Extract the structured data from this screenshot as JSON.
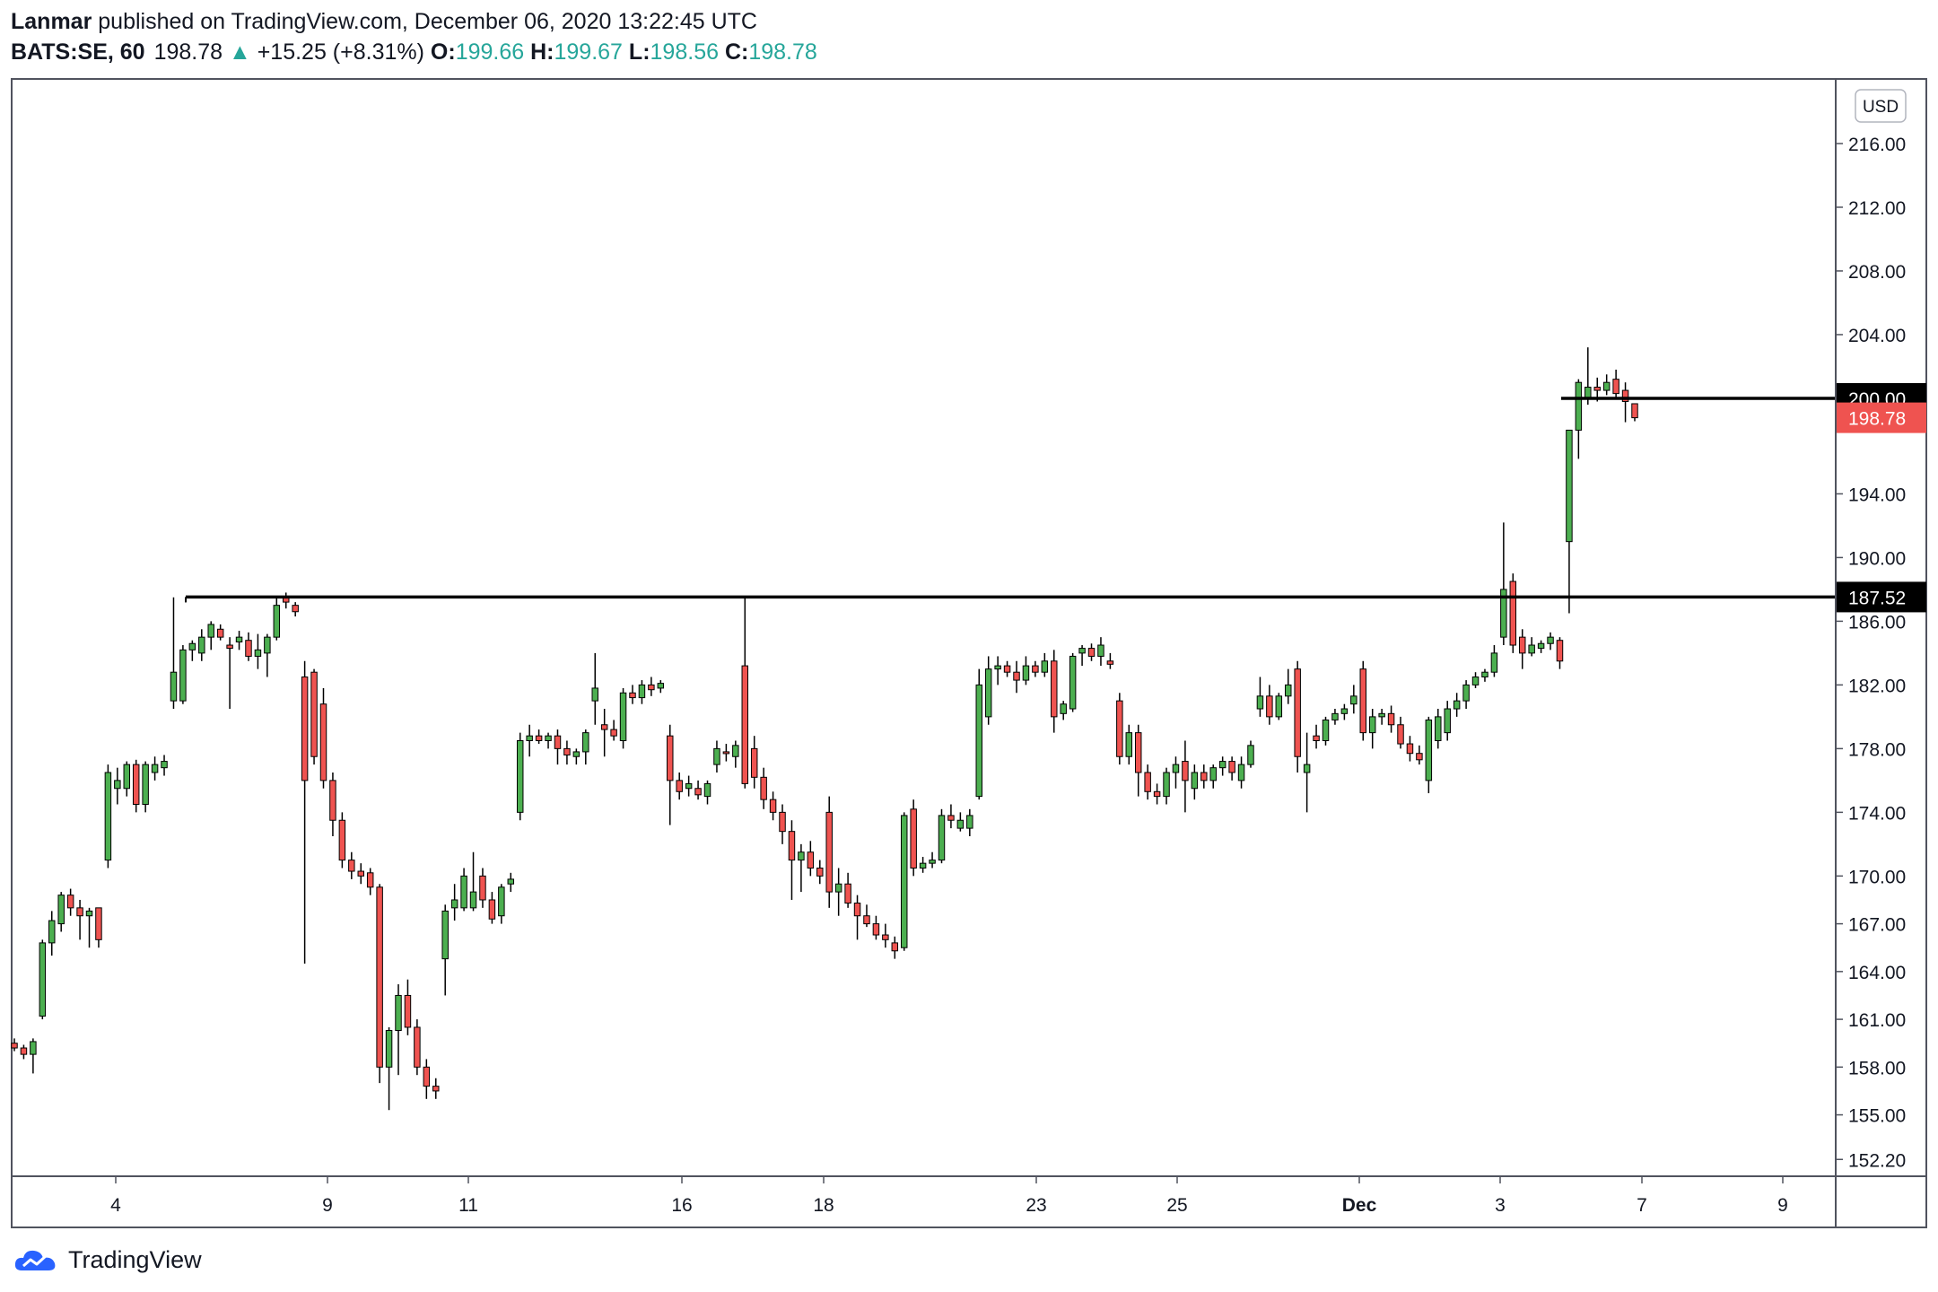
{
  "header": {
    "author": "Lanmar",
    "published_text": "published on TradingView.com, December 06, 2020 13:22:45 UTC",
    "symbol": "BATS:SE, 60",
    "last_price": "198.78",
    "change_arrow": "▲",
    "change": "+15.25 (+8.31%)",
    "open_label": "O:",
    "open": "199.66",
    "high_label": "H:",
    "high": "199.67",
    "low_label": "L:",
    "low": "198.56",
    "close_label": "C:",
    "close": "198.78"
  },
  "currency_badge": "USD",
  "footer": {
    "brand": "TradingView",
    "logo_icon": "tradingview-cloud-icon"
  },
  "colors": {
    "up": "#26a69a",
    "bull_body": "#4caf50",
    "bear_body": "#ef5350",
    "accent_red": "#ef5350",
    "line": "#000000"
  },
  "chart_data": {
    "type": "candlestick",
    "title": "",
    "xlabel": "",
    "ylabel": "",
    "y_ticks": [
      "216.00",
      "212.00",
      "208.00",
      "204.00",
      "194.00",
      "190.00",
      "186.00",
      "182.00",
      "178.00",
      "174.00",
      "170.00",
      "167.00",
      "164.00",
      "161.00",
      "158.00",
      "155.00",
      "152.20"
    ],
    "x_ticks": [
      "4",
      "9",
      "11",
      "16",
      "18",
      "23",
      "25",
      "Dec",
      "3",
      "7",
      "9"
    ],
    "ylim": [
      151.2,
      220
    ],
    "horizontal_lines": [
      {
        "price": 200.0,
        "label": "200.00"
      },
      {
        "price": 187.52,
        "label": "187.52"
      }
    ],
    "last_price_label": "198.78",
    "candles": [
      [
        159.5,
        159.8,
        159.0,
        159.2
      ],
      [
        159.2,
        159.4,
        158.5,
        158.8
      ],
      [
        158.8,
        159.8,
        157.6,
        159.6
      ],
      [
        161.2,
        166.0,
        161.0,
        165.8
      ],
      [
        165.8,
        167.8,
        165.0,
        167.2
      ],
      [
        167.0,
        169.0,
        166.5,
        168.8
      ],
      [
        168.8,
        169.2,
        167.5,
        168.0
      ],
      [
        168.0,
        168.5,
        166.0,
        167.5
      ],
      [
        167.5,
        168.0,
        165.5,
        167.8
      ],
      [
        168.0,
        167.5,
        165.5,
        166.0
      ],
      [
        171.0,
        177.0,
        170.5,
        176.5
      ],
      [
        175.5,
        176.8,
        174.5,
        176.0
      ],
      [
        175.5,
        177.2,
        175.0,
        177.0
      ],
      [
        177.0,
        177.3,
        174.0,
        174.5
      ],
      [
        174.5,
        177.2,
        174.0,
        177.0
      ],
      [
        176.5,
        177.5,
        176.0,
        177.0
      ],
      [
        176.8,
        177.6,
        176.3,
        177.2
      ],
      [
        181.0,
        187.5,
        180.5,
        182.8
      ],
      [
        181.0,
        184.5,
        180.8,
        184.2
      ],
      [
        184.2,
        184.8,
        183.5,
        184.6
      ],
      [
        184.0,
        185.5,
        183.5,
        185.0
      ],
      [
        185.0,
        186.0,
        184.2,
        185.8
      ],
      [
        185.5,
        185.8,
        184.8,
        185.0
      ],
      [
        184.5,
        185.0,
        180.5,
        184.3
      ],
      [
        184.7,
        185.4,
        184.2,
        185.0
      ],
      [
        184.8,
        185.3,
        183.5,
        183.8
      ],
      [
        183.8,
        185.2,
        183.0,
        184.2
      ],
      [
        184.0,
        185.2,
        182.5,
        185.0
      ],
      [
        185.0,
        187.5,
        184.8,
        187.0
      ],
      [
        187.5,
        187.8,
        186.8,
        187.2
      ],
      [
        187.0,
        187.2,
        186.3,
        186.6
      ],
      [
        182.5,
        183.5,
        164.5,
        176.0
      ],
      [
        182.8,
        183.0,
        177.0,
        177.5
      ],
      [
        180.8,
        181.8,
        175.5,
        176.0
      ],
      [
        176.0,
        176.5,
        172.5,
        173.5
      ],
      [
        173.5,
        174.0,
        170.5,
        171.0
      ],
      [
        171.0,
        171.5,
        169.8,
        170.3
      ],
      [
        170.3,
        170.8,
        169.5,
        170.0
      ],
      [
        170.2,
        170.5,
        168.8,
        169.3
      ],
      [
        169.3,
        169.5,
        157.0,
        158.0
      ],
      [
        158.0,
        160.5,
        155.3,
        160.3
      ],
      [
        160.3,
        163.2,
        157.5,
        162.5
      ],
      [
        162.5,
        163.5,
        160.0,
        160.5
      ],
      [
        160.5,
        161.0,
        157.5,
        158.0
      ],
      [
        158.0,
        158.5,
        156.0,
        156.8
      ],
      [
        156.8,
        157.3,
        156.0,
        156.5
      ],
      [
        164.8,
        168.2,
        162.5,
        167.8
      ],
      [
        168.0,
        169.5,
        167.2,
        168.5
      ],
      [
        168.0,
        170.5,
        167.8,
        170.0
      ],
      [
        168.0,
        171.5,
        167.8,
        169.0
      ],
      [
        170.0,
        170.5,
        168.0,
        168.5
      ],
      [
        168.5,
        169.0,
        167.0,
        167.3
      ],
      [
        167.5,
        169.5,
        167.0,
        169.3
      ],
      [
        169.5,
        170.2,
        169.0,
        169.8
      ],
      [
        174.0,
        179.0,
        173.5,
        178.5
      ],
      [
        178.5,
        179.5,
        177.5,
        178.8
      ],
      [
        178.8,
        179.2,
        178.3,
        178.5
      ],
      [
        178.5,
        179.0,
        178.0,
        178.8
      ],
      [
        178.8,
        179.2,
        177.0,
        178.0
      ],
      [
        178.0,
        178.5,
        177.0,
        177.6
      ],
      [
        177.5,
        178.0,
        177.0,
        177.8
      ],
      [
        177.8,
        179.2,
        177.0,
        179.0
      ],
      [
        181.0,
        184.0,
        179.5,
        181.8
      ],
      [
        179.5,
        180.5,
        177.5,
        179.2
      ],
      [
        179.2,
        179.8,
        178.5,
        178.8
      ],
      [
        178.5,
        181.8,
        178.0,
        181.5
      ],
      [
        181.5,
        182.0,
        180.8,
        181.2
      ],
      [
        181.2,
        182.3,
        180.8,
        182.0
      ],
      [
        182.0,
        182.5,
        181.3,
        181.7
      ],
      [
        181.8,
        182.3,
        181.5,
        182.1
      ],
      [
        178.8,
        179.5,
        173.2,
        176.0
      ],
      [
        176.0,
        176.5,
        174.8,
        175.3
      ],
      [
        175.5,
        176.3,
        175.0,
        175.8
      ],
      [
        175.5,
        176.0,
        174.8,
        175.1
      ],
      [
        175.0,
        176.0,
        174.5,
        175.8
      ],
      [
        177.0,
        178.5,
        176.5,
        178.0
      ],
      [
        177.8,
        178.3,
        177.2,
        177.7
      ],
      [
        177.5,
        178.5,
        176.8,
        178.2
      ],
      [
        183.2,
        187.5,
        175.5,
        175.8
      ],
      [
        178.0,
        178.8,
        175.5,
        176.2
      ],
      [
        176.2,
        176.8,
        174.2,
        174.8
      ],
      [
        174.8,
        175.3,
        173.5,
        174.0
      ],
      [
        174.0,
        174.5,
        172.0,
        172.8
      ],
      [
        172.8,
        173.5,
        168.5,
        171.0
      ],
      [
        171.0,
        172.0,
        169.0,
        171.5
      ],
      [
        171.5,
        172.2,
        170.0,
        170.5
      ],
      [
        170.5,
        171.0,
        169.5,
        170.0
      ],
      [
        174.0,
        175.0,
        168.0,
        169.0
      ],
      [
        169.0,
        170.5,
        167.5,
        169.5
      ],
      [
        169.5,
        170.2,
        168.0,
        168.3
      ],
      [
        168.3,
        168.8,
        166.0,
        167.5
      ],
      [
        167.5,
        168.2,
        166.8,
        167.0
      ],
      [
        167.0,
        167.5,
        166.0,
        166.3
      ],
      [
        166.3,
        167.0,
        165.5,
        166.0
      ],
      [
        165.8,
        166.2,
        164.8,
        165.3
      ],
      [
        165.5,
        174.0,
        165.3,
        173.8
      ],
      [
        174.2,
        174.8,
        170.0,
        170.5
      ],
      [
        170.5,
        171.2,
        170.2,
        170.8
      ],
      [
        170.8,
        171.5,
        170.5,
        171.0
      ],
      [
        171.0,
        174.2,
        170.8,
        173.8
      ],
      [
        173.8,
        174.5,
        173.0,
        173.5
      ],
      [
        173.0,
        174.0,
        172.8,
        173.5
      ],
      [
        173.0,
        174.2,
        172.5,
        173.8
      ],
      [
        175.0,
        183.0,
        174.8,
        182.0
      ],
      [
        180.0,
        183.8,
        179.5,
        183.0
      ],
      [
        183.0,
        183.8,
        182.0,
        183.2
      ],
      [
        183.2,
        183.5,
        182.5,
        182.8
      ],
      [
        182.8,
        183.5,
        181.5,
        182.3
      ],
      [
        182.3,
        183.8,
        182.0,
        183.2
      ],
      [
        183.2,
        183.5,
        182.5,
        182.8
      ],
      [
        182.8,
        184.0,
        182.5,
        183.5
      ],
      [
        183.5,
        184.2,
        179.0,
        180.0
      ],
      [
        180.2,
        181.0,
        179.8,
        180.8
      ],
      [
        180.5,
        184.0,
        180.3,
        183.8
      ],
      [
        184.0,
        184.5,
        183.2,
        184.3
      ],
      [
        184.3,
        184.6,
        183.5,
        183.8
      ],
      [
        183.8,
        185.0,
        183.2,
        184.5
      ],
      [
        183.5,
        184.0,
        183.0,
        183.3
      ],
      [
        181.0,
        181.5,
        177.0,
        177.5
      ],
      [
        177.5,
        179.5,
        177.0,
        179.0
      ],
      [
        179.0,
        179.5,
        175.0,
        176.5
      ],
      [
        176.5,
        177.0,
        174.8,
        175.3
      ],
      [
        175.3,
        175.8,
        174.5,
        175.0
      ],
      [
        175.0,
        176.8,
        174.5,
        176.5
      ],
      [
        176.5,
        177.5,
        175.5,
        177.0
      ],
      [
        177.2,
        178.5,
        174.0,
        176.0
      ],
      [
        175.5,
        177.0,
        174.8,
        176.5
      ],
      [
        176.5,
        177.0,
        175.5,
        176.0
      ],
      [
        176.0,
        177.0,
        175.5,
        176.8
      ],
      [
        176.8,
        177.5,
        176.3,
        177.2
      ],
      [
        177.2,
        177.5,
        176.0,
        176.5
      ],
      [
        176.0,
        177.5,
        175.5,
        177.0
      ],
      [
        177.0,
        178.5,
        176.8,
        178.2
      ],
      [
        180.5,
        182.5,
        180.0,
        181.3
      ],
      [
        181.3,
        182.0,
        179.5,
        180.0
      ],
      [
        180.0,
        181.5,
        179.8,
        181.3
      ],
      [
        181.3,
        183.0,
        180.8,
        182.0
      ],
      [
        183.0,
        183.5,
        176.5,
        177.5
      ],
      [
        176.5,
        179.0,
        174.0,
        177.0
      ],
      [
        178.8,
        179.5,
        178.0,
        178.5
      ],
      [
        178.5,
        180.0,
        178.2,
        179.8
      ],
      [
        179.8,
        180.5,
        179.5,
        180.2
      ],
      [
        180.2,
        180.8,
        179.8,
        180.5
      ],
      [
        180.8,
        182.0,
        180.2,
        181.3
      ],
      [
        183.0,
        183.5,
        178.5,
        179.0
      ],
      [
        179.0,
        180.5,
        178.0,
        180.0
      ],
      [
        180.0,
        180.5,
        179.5,
        180.2
      ],
      [
        180.2,
        180.7,
        179.0,
        179.5
      ],
      [
        179.5,
        180.0,
        178.0,
        178.3
      ],
      [
        178.3,
        178.8,
        177.2,
        177.7
      ],
      [
        177.7,
        178.2,
        177.0,
        177.3
      ],
      [
        176.0,
        180.0,
        175.2,
        179.8
      ],
      [
        178.5,
        180.5,
        178.0,
        180.0
      ],
      [
        179.0,
        181.0,
        178.5,
        180.5
      ],
      [
        180.5,
        181.5,
        180.0,
        181.0
      ],
      [
        181.0,
        182.3,
        180.5,
        182.0
      ],
      [
        182.0,
        182.8,
        181.8,
        182.5
      ],
      [
        182.5,
        183.0,
        182.2,
        182.8
      ],
      [
        182.8,
        184.5,
        182.5,
        184.0
      ],
      [
        185.0,
        192.2,
        184.5,
        188.0
      ],
      [
        188.5,
        189.0,
        184.0,
        184.5
      ],
      [
        185.0,
        185.5,
        183.0,
        184.0
      ],
      [
        184.0,
        185.0,
        183.8,
        184.5
      ],
      [
        184.3,
        184.8,
        184.0,
        184.6
      ],
      [
        184.6,
        185.3,
        184.2,
        185.0
      ],
      [
        184.8,
        185.0,
        183.0,
        183.5
      ],
      [
        191.0,
        198.0,
        186.5,
        198.0
      ],
      [
        198.0,
        201.2,
        196.2,
        201.0
      ],
      [
        200.0,
        203.2,
        199.6,
        200.7
      ],
      [
        200.7,
        201.3,
        199.8,
        200.5
      ],
      [
        200.5,
        201.5,
        200.2,
        201.0
      ],
      [
        201.2,
        201.8,
        200.0,
        200.3
      ],
      [
        200.5,
        201.0,
        198.5,
        199.8
      ],
      [
        199.66,
        199.67,
        198.56,
        198.78
      ]
    ]
  }
}
